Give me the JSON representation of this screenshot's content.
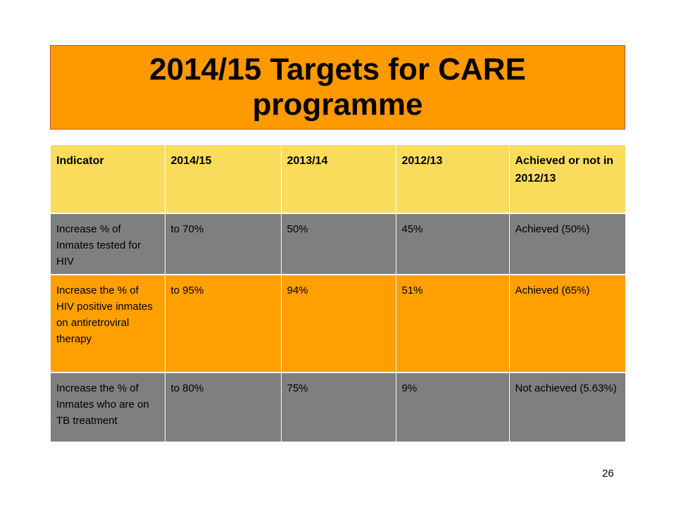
{
  "slide": {
    "title": "2014/15 Targets for CARE programme",
    "page_number": "26"
  },
  "table": {
    "headers": [
      "Indicator",
      "2014/15",
      "2013/14",
      "2012/13",
      "Achieved or not in 2012/13"
    ],
    "rows": [
      [
        "Increase % of Inmates tested for HIV",
        "to 70%",
        "50%",
        "45%",
        "Achieved (50%)"
      ],
      [
        "Increase the % of HIV positive inmates on antiretroviral therapy",
        "to 95%",
        "94%",
        "51%",
        "Achieved (65%)"
      ],
      [
        "Increase the % of Inmates who are on TB treatment",
        "to 80%",
        "75%",
        "9%",
        "Not achieved (5.63%)"
      ]
    ]
  },
  "colors": {
    "title_background": "#FF9900",
    "header_background": "#F9DC5C",
    "grey_row": "#7F7F7F",
    "orange_row": "#FF9F00"
  }
}
